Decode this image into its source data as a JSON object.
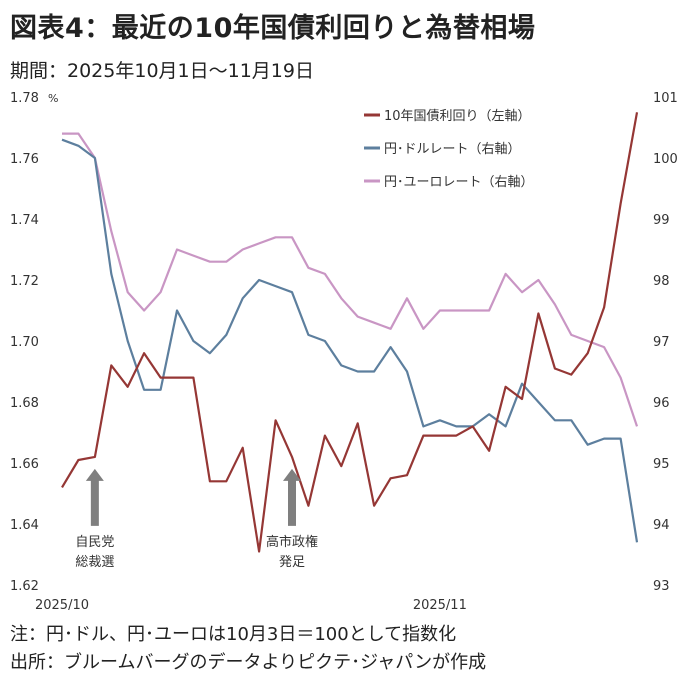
{
  "header": {
    "title": "図表4：最近の10年国債利回りと為替相場",
    "subtitle": "期間：2025年10月1日～11月19日"
  },
  "footer": {
    "note": "注：円･ドル、円･ユーロは10月3日＝100として指数化",
    "source": "出所：ブルームバーグのデータよりピクテ･ジャパンが作成"
  },
  "chart_data": {
    "type": "line",
    "title": "最近の10年国債利回りと為替相場",
    "left_axis": {
      "unit": "%",
      "ylim": [
        1.62,
        1.78
      ],
      "ticks": [
        "1.62",
        "1.64",
        "1.66",
        "1.68",
        "1.70",
        "1.72",
        "1.74",
        "1.76",
        "1.78"
      ]
    },
    "right_axis": {
      "ylim": [
        93,
        101
      ],
      "ticks": [
        "93",
        "94",
        "95",
        "96",
        "97",
        "98",
        "99",
        "100",
        "101"
      ]
    },
    "x_labels": [
      {
        "text": "2025/10",
        "index": 0
      },
      {
        "text": "2025/11",
        "index": 23
      }
    ],
    "series": [
      {
        "name": "10年国債利回り（左軸）",
        "axis": "left",
        "color": "#953735",
        "values": [
          1.652,
          1.661,
          1.662,
          1.692,
          1.685,
          1.696,
          1.688,
          1.688,
          1.688,
          1.654,
          1.654,
          1.665,
          1.631,
          1.674,
          1.662,
          1.646,
          1.669,
          1.659,
          1.673,
          1.646,
          1.655,
          1.656,
          1.669,
          1.669,
          1.669,
          1.672,
          1.664,
          1.685,
          1.681,
          1.709,
          1.691,
          1.689,
          1.696,
          1.711,
          1.745,
          1.775
        ]
      },
      {
        "name": "円･ドルレート（右軸）",
        "axis": "right",
        "color": "#5d7f9e",
        "values": [
          100.3,
          100.2,
          100.0,
          98.1,
          97.0,
          96.2,
          96.2,
          97.5,
          97.0,
          96.8,
          97.1,
          97.7,
          98.0,
          97.9,
          97.8,
          97.1,
          97.0,
          96.6,
          96.5,
          96.5,
          96.9,
          96.5,
          95.6,
          95.7,
          95.6,
          95.6,
          95.8,
          95.6,
          96.3,
          96.0,
          95.7,
          95.7,
          95.3,
          95.4,
          95.4,
          93.7
        ]
      },
      {
        "name": "円･ユーロレート（右軸）",
        "axis": "right",
        "color": "#c996c4",
        "values": [
          100.4,
          100.4,
          100.0,
          98.8,
          97.8,
          97.5,
          97.8,
          98.5,
          98.4,
          98.3,
          98.3,
          98.5,
          98.6,
          98.7,
          98.7,
          98.2,
          98.1,
          97.7,
          97.4,
          97.3,
          97.2,
          97.7,
          97.2,
          97.5,
          97.5,
          97.5,
          97.5,
          98.1,
          97.8,
          98.0,
          97.6,
          97.1,
          97.0,
          96.9,
          96.4,
          95.6
        ]
      }
    ],
    "annotations": [
      {
        "lines": [
          "自民党",
          "総裁選"
        ],
        "index": 2
      },
      {
        "lines": [
          "高市政権",
          "発足"
        ],
        "index": 14
      }
    ]
  }
}
